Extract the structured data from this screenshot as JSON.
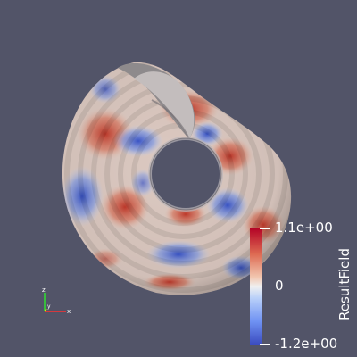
{
  "viewport": {
    "background": "#525468",
    "surface": "torus-like shell colored by scalar field"
  },
  "colorbar": {
    "title": "ResultField",
    "max_label": "1.1e+00",
    "mid_label": "0",
    "min_label": "-1.2e+00",
    "colormap": [
      "#3b4cc0",
      "#f0f0f0",
      "#b40426"
    ]
  },
  "axes": {
    "x_label": "x",
    "y_label": "y",
    "z_label": "z",
    "x_color": "#ff3030",
    "y_color": "#e8e800",
    "z_color": "#30e030"
  }
}
